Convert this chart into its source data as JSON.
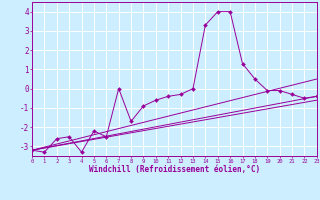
{
  "xlabel": "Windchill (Refroidissement éolien,°C)",
  "background_color": "#cceeff",
  "line_color": "#990099",
  "grid_color": "#ffffff",
  "x_ticks": [
    0,
    1,
    2,
    3,
    4,
    5,
    6,
    7,
    8,
    9,
    10,
    11,
    12,
    13,
    14,
    15,
    16,
    17,
    18,
    19,
    20,
    21,
    22,
    23
  ],
  "y_ticks": [
    -3,
    -2,
    -1,
    0,
    1,
    2,
    3,
    4
  ],
  "xlim": [
    0,
    23
  ],
  "ylim": [
    -3.5,
    4.5
  ],
  "series1": {
    "x": [
      0,
      1,
      2,
      3,
      4,
      5,
      6,
      7,
      8,
      9,
      10,
      11,
      12,
      13,
      14,
      15,
      16,
      17,
      18,
      19,
      20,
      21,
      22,
      23
    ],
    "y": [
      -3.2,
      -3.3,
      -2.6,
      -2.5,
      -3.3,
      -2.2,
      -2.5,
      0.0,
      -1.7,
      -0.9,
      -0.6,
      -0.4,
      -0.3,
      0.0,
      3.3,
      4.0,
      4.0,
      1.3,
      0.5,
      -0.1,
      -0.1,
      -0.3,
      -0.5,
      -0.4
    ]
  },
  "series2": {
    "x": [
      0,
      23
    ],
    "y": [
      -3.2,
      -0.4
    ]
  },
  "series3": {
    "x": [
      0,
      23
    ],
    "y": [
      -3.2,
      -0.6
    ]
  },
  "series4": {
    "x": [
      0,
      23
    ],
    "y": [
      -3.2,
      0.5
    ]
  }
}
